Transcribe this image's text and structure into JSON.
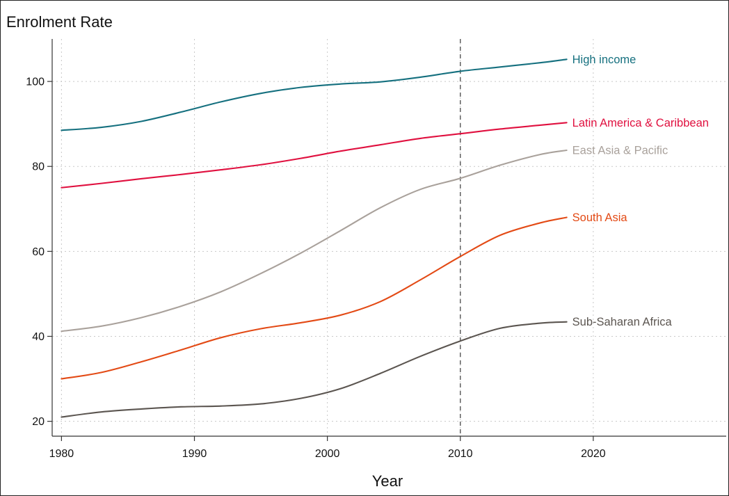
{
  "chart_data": {
    "type": "line",
    "title": "",
    "ylabel": "Enrolment Rate",
    "xlabel": "Year",
    "xlim": [
      1979.3,
      2030
    ],
    "ylim": [
      16.5,
      110
    ],
    "x_ticks": [
      1980,
      1990,
      2000,
      2010,
      2020
    ],
    "y_ticks": [
      20,
      40,
      60,
      80,
      100
    ],
    "grid": true,
    "reference_line_x": 2010,
    "x": [
      1980,
      1983,
      1986,
      1989,
      1992,
      1995,
      1998,
      2001,
      2004,
      2007,
      2010,
      2013,
      2016,
      2018
    ],
    "series": [
      {
        "name": "High income",
        "color": "#15707f",
        "values": [
          88.5,
          89.2,
          90.6,
          92.8,
          95.2,
          97.2,
          98.6,
          99.4,
          99.9,
          101.0,
          102.4,
          103.4,
          104.4,
          105.2
        ]
      },
      {
        "name": "Latin America & Caribbean",
        "color": "#e0103f",
        "values": [
          75.0,
          76.0,
          77.1,
          78.1,
          79.2,
          80.4,
          81.9,
          83.6,
          85.1,
          86.6,
          87.7,
          88.8,
          89.7,
          90.3
        ]
      },
      {
        "name": "East Asia & Pacific",
        "color": "#a9a19b",
        "values": [
          41.2,
          42.4,
          44.4,
          47.1,
          50.5,
          54.8,
          59.6,
          64.9,
          70.3,
          74.6,
          77.2,
          80.3,
          82.8,
          83.8
        ]
      },
      {
        "name": "South Asia",
        "color": "#e34a15",
        "values": [
          30.0,
          31.5,
          34.0,
          36.8,
          39.7,
          41.8,
          43.2,
          45.0,
          48.2,
          53.3,
          58.8,
          63.8,
          66.7,
          68.0
        ]
      },
      {
        "name": "Sub-Saharan Africa",
        "color": "#5b5550",
        "values": [
          21.0,
          22.2,
          22.9,
          23.4,
          23.6,
          24.1,
          25.4,
          27.7,
          31.3,
          35.3,
          38.9,
          41.9,
          43.1,
          43.4
        ]
      }
    ]
  }
}
